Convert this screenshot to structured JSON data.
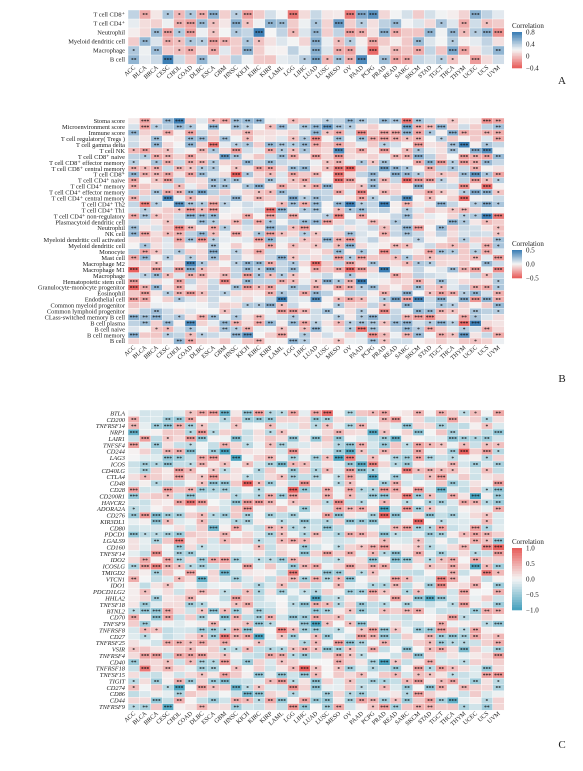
{
  "chart_data": [
    {
      "type": "heatmap",
      "panel": "A",
      "rows": [
        "T cell CD8⁺",
        "T cell CD4⁺",
        "Neutrophil",
        "Myeloid dendritic cell",
        "Macrophage",
        "B cell"
      ],
      "columns": [
        "ACC",
        "BLCA",
        "BRCA",
        "CESC",
        "CHOL",
        "COAD",
        "DLBC",
        "ESCA",
        "GBM",
        "HNSC",
        "KICH",
        "KIRC",
        "KIRP",
        "LAML",
        "LGG",
        "LIHC",
        "LUAD",
        "LUSC",
        "MESO",
        "OV",
        "PAAD",
        "PCPG",
        "PRAD",
        "READ",
        "SARC",
        "SKCM",
        "STAD",
        "TGCT",
        "THCA",
        "THYM",
        "UCEC",
        "UCS",
        "UVM"
      ],
      "legend": {
        "title": "Correlation",
        "ticks": [
          "0.8",
          "0.4",
          "0",
          "−0.4"
        ],
        "domain": [
          -0.4,
          0.8
        ]
      },
      "colors": {
        "positive": "#3d7fb5",
        "neutral": "#f5f5f5",
        "negative": "#e8605e"
      }
    },
    {
      "type": "heatmap",
      "panel": "B",
      "rows": [
        "Stoma score",
        "Microenvironment score",
        "Immune score",
        "T cell regulatory( Tregs )",
        "T cell gamma delta",
        "T cell NK",
        "T cell CD8⁺ naive",
        "T cell CD8⁺ effector memory",
        "T cell CD8⁺ central memory",
        "T cell CD8⁺",
        "T cell CD4⁺ naive",
        "T cell CD4⁺ memory",
        "T cell CD4⁺ effector memory",
        "T cell CD4⁺ central memory",
        "T cell CD4⁺ Th2",
        "T cell CD4⁺ Th1",
        "T cell CD4⁺ non-regulatory",
        "Plasmacytoid dendritic cell",
        "Neutrophil",
        "NK cell",
        "Myeloid dendritic cell activated",
        "Myeloid dendritic cell",
        "Monocyte",
        "Mast cell",
        "Macrophage M2",
        "Macrophage M1",
        "Macrophage",
        "Hematopoietic stem cell",
        "Granulocyte-monocyte progenitor",
        "Eosinophil",
        "Endothelial cell",
        "Common myeloid progenitor",
        "Common lymphoid progenitor",
        "CLass-switched memory B cell",
        "B cell plasma",
        "B cell naive",
        "B cell memory",
        "B cell"
      ],
      "columns": [
        "ACC",
        "BLCA",
        "BRCA",
        "CESC",
        "CHOL",
        "COAD",
        "DLBC",
        "ESCA",
        "GBM",
        "HNSC",
        "KICH",
        "KIRC",
        "KIRP",
        "LAML",
        "LGG",
        "LIHC",
        "LUAD",
        "LUSC",
        "MESO",
        "OV",
        "PAAD",
        "PCPG",
        "PRAD",
        "READ",
        "SARC",
        "SKCM",
        "STAD",
        "TGCT",
        "THCA",
        "THYM",
        "UCEC",
        "UCS",
        "UVM"
      ],
      "legend": {
        "title": "Correlation",
        "ticks": [
          "0.5",
          "0.0",
          "−0.5"
        ],
        "domain": [
          -0.5,
          0.5
        ]
      },
      "colors": {
        "positive": "#3d7fb5",
        "neutral": "#f5f5f5",
        "negative": "#e8605e"
      }
    },
    {
      "type": "heatmap",
      "panel": "C",
      "rows": [
        "BTLA",
        "CD200",
        "TNFRSF14",
        "NRP1",
        "LAIR1",
        "TNFSF4",
        "CD244",
        "LAG3",
        "ICOS",
        "CD40LG",
        "CTLA4",
        "CD48",
        "CD28",
        "CD200R1",
        "HAVCR2",
        "ADORA2A",
        "CD276",
        "KIR3DL1",
        "CD80",
        "PDCD1",
        "LGALS9",
        "CD160",
        "TNFSF14",
        "IDO2",
        "ICOSLG",
        "TMIGD2",
        "VTCN1",
        "IDO1",
        "PDCD1LG2",
        "HHLA2",
        "TNFSF18",
        "BTNL2",
        "CD70",
        "TNFSF9",
        "TNFRSF8",
        "CD27",
        "TNFRSF25",
        "VSIR",
        "TNFRSF4",
        "CD40",
        "TNFRSF18",
        "TNFSF15",
        "TIGIT",
        "CD274",
        "CD86",
        "CD44",
        "TNFRSF9"
      ],
      "columns": [
        "ACC",
        "BLCA",
        "BRCA",
        "CESC",
        "CHOL",
        "COAD",
        "DLBC",
        "ESCA",
        "GBM",
        "HNSC",
        "KICH",
        "KIRC",
        "KIRP",
        "LAML",
        "LGG",
        "LIHC",
        "LUAD",
        "LUSC",
        "MESO",
        "OV",
        "PAAD",
        "PCPG",
        "PRAD",
        "READ",
        "SARC",
        "SKCM",
        "STAD",
        "TGCT",
        "THCA",
        "THYM",
        "UCEC",
        "UCS",
        "UVM"
      ],
      "legend": {
        "title": "Correlation",
        "ticks": [
          "1.0",
          "0.5",
          "0.0",
          "−0.5",
          "−1.0"
        ],
        "domain": [
          -1.0,
          1.0
        ]
      },
      "colors": {
        "positive": "#e8605e",
        "neutral": "#f5f5f5",
        "negative": "#4aa3bf"
      }
    }
  ]
}
